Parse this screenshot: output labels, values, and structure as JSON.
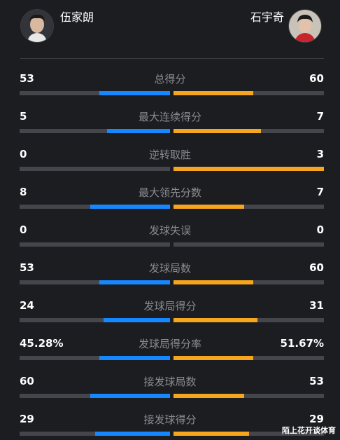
{
  "players": {
    "left": {
      "name": "伍家朗"
    },
    "right": {
      "name": "石宇奇"
    }
  },
  "colors": {
    "left_bar": "#1687ff",
    "right_bar": "#f6a51e",
    "track": "#45464b"
  },
  "stats": [
    {
      "label": "总得分",
      "left": "53",
      "right": "60",
      "left_frac": 0.47,
      "right_frac": 0.53
    },
    {
      "label": "最大连续得分",
      "left": "5",
      "right": "7",
      "left_frac": 0.42,
      "right_frac": 0.58
    },
    {
      "label": "逆转取胜",
      "left": "0",
      "right": "3",
      "left_frac": 0.0,
      "right_frac": 1.0
    },
    {
      "label": "最大领先分数",
      "left": "8",
      "right": "7",
      "left_frac": 0.53,
      "right_frac": 0.47
    },
    {
      "label": "发球失误",
      "left": "0",
      "right": "0",
      "left_frac": 0.0,
      "right_frac": 0.0
    },
    {
      "label": "发球局数",
      "left": "53",
      "right": "60",
      "left_frac": 0.47,
      "right_frac": 0.53
    },
    {
      "label": "发球局得分",
      "left": "24",
      "right": "31",
      "left_frac": 0.44,
      "right_frac": 0.56
    },
    {
      "label": "发球局得分率",
      "left": "45.28%",
      "right": "51.67%",
      "left_frac": 0.47,
      "right_frac": 0.53
    },
    {
      "label": "接发球局数",
      "left": "60",
      "right": "53",
      "left_frac": 0.53,
      "right_frac": 0.47
    },
    {
      "label": "接发球得分",
      "left": "29",
      "right": "29",
      "left_frac": 0.5,
      "right_frac": 0.5
    }
  ],
  "watermark": "陌上花开谈体育"
}
